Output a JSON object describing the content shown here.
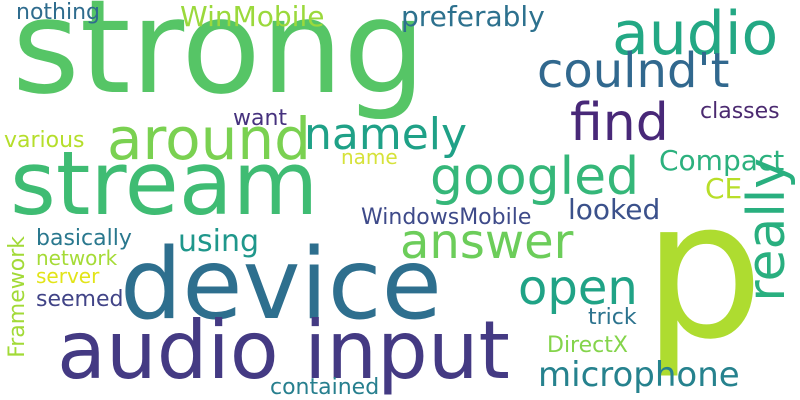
{
  "words": [
    {
      "id": "strong",
      "text": "strong",
      "color": "#56c566"
    },
    {
      "id": "p",
      "text": "p",
      "color": "#aedc30"
    },
    {
      "id": "device",
      "text": "device",
      "color": "#2e6f8e"
    },
    {
      "id": "stream",
      "text": "stream",
      "color": "#3fbc73"
    },
    {
      "id": "audio-input",
      "text": "audio input",
      "color": "#443a83"
    },
    {
      "id": "audio",
      "text": "audio",
      "color": "#23a884"
    },
    {
      "id": "couldnt",
      "text": "coulnd't",
      "color": "#31688e"
    },
    {
      "id": "find",
      "text": "find",
      "color": "#482878"
    },
    {
      "id": "around",
      "text": "around",
      "color": "#7ad151"
    },
    {
      "id": "namely",
      "text": "namely",
      "color": "#1fa187"
    },
    {
      "id": "googled",
      "text": "googled",
      "color": "#35b779"
    },
    {
      "id": "answer",
      "text": "answer",
      "color": "#6ccd5a"
    },
    {
      "id": "open",
      "text": "open",
      "color": "#20a386"
    },
    {
      "id": "really",
      "text": "really",
      "color": "#29af7f"
    },
    {
      "id": "microphone",
      "text": "microphone",
      "color": "#26828e"
    },
    {
      "id": "nothing",
      "text": "nothing",
      "color": "#2f6c8e"
    },
    {
      "id": "winmobile",
      "text": "WinMobile",
      "color": "#9bd93c"
    },
    {
      "id": "preferably",
      "text": "preferably",
      "color": "#2d718e"
    },
    {
      "id": "want",
      "text": "want",
      "color": "#46327e"
    },
    {
      "id": "classes",
      "text": "classes",
      "color": "#4b2a70"
    },
    {
      "id": "various",
      "text": "various",
      "color": "#b5de2b"
    },
    {
      "id": "name",
      "text": "name",
      "color": "#d6e23a"
    },
    {
      "id": "compact",
      "text": "Compact",
      "color": "#2cb17e"
    },
    {
      "id": "ce",
      "text": "CE",
      "color": "#b8de29"
    },
    {
      "id": "looked",
      "text": "looked",
      "color": "#3b518b"
    },
    {
      "id": "windowsmobile",
      "text": "WindowsMobile",
      "color": "#3e4a89"
    },
    {
      "id": "basically",
      "text": "basically",
      "color": "#2a788e"
    },
    {
      "id": "using",
      "text": "using",
      "color": "#1f978b"
    },
    {
      "id": "framework",
      "text": "Framework",
      "color": "#a2da37"
    },
    {
      "id": "network",
      "text": "network",
      "color": "#a5db36"
    },
    {
      "id": "server",
      "text": "server",
      "color": "#e2e418"
    },
    {
      "id": "seemed",
      "text": "seemed",
      "color": "#414487"
    },
    {
      "id": "trick",
      "text": "trick",
      "color": "#2c738e"
    },
    {
      "id": "directx",
      "text": "DirectX",
      "color": "#84d44b"
    },
    {
      "id": "contained",
      "text": "contained",
      "color": "#277f8e"
    }
  ]
}
